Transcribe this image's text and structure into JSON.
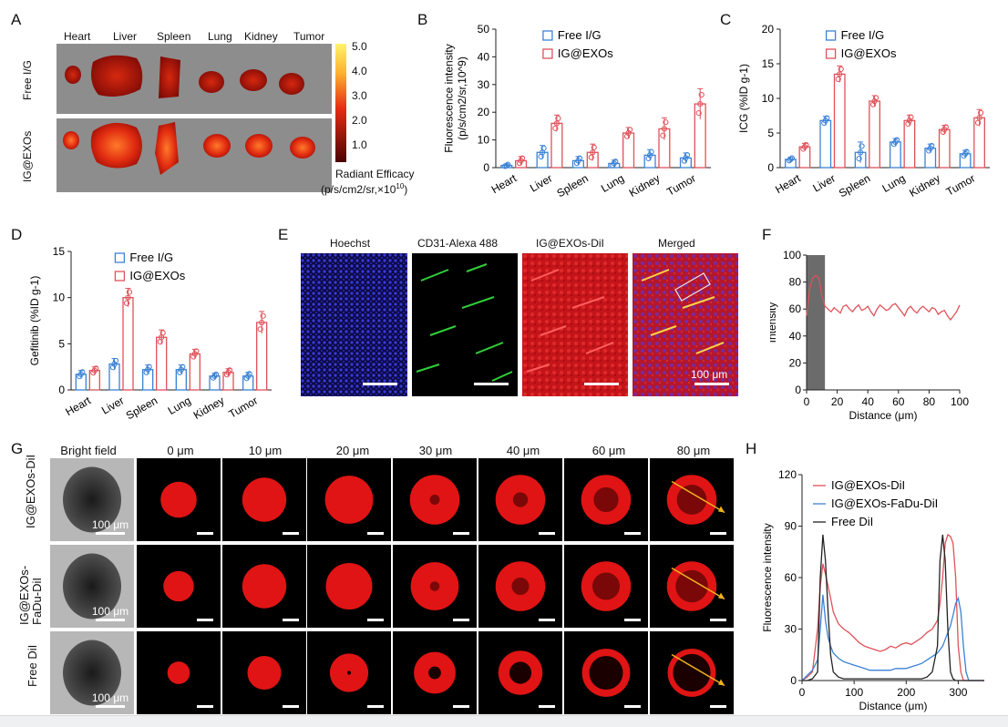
{
  "panels": {
    "A": "A",
    "B": "B",
    "C": "C",
    "D": "D",
    "E": "E",
    "F": "F",
    "G": "G",
    "H": "H"
  },
  "panelA": {
    "organs": [
      "Heart",
      "Liver",
      "Spleen",
      "Lung",
      "Kidney",
      "Tumor"
    ],
    "rows": [
      "Free I/G",
      "IG@EXOs"
    ],
    "colorbar_ticks": [
      "5.0",
      "4.0",
      "3.0",
      "2.0",
      "1.0"
    ],
    "colorbar_title": "Radiant Efficacy",
    "colorbar_unit": "(p/s/cm2/sr,×10",
    "colorbar_unit_exp": "10",
    "colorbar_unit_close": ")"
  },
  "panelE": {
    "titles": [
      "Hoechst",
      "CD31-Alexa 488",
      "IG@EXOs-DiI",
      "Merged"
    ],
    "scale_label": "100 μm"
  },
  "panelG": {
    "col_titles": [
      "Bright field",
      "0 μm",
      "10 μm",
      "20 μm",
      "30 μm",
      "40 μm",
      "60 μm",
      "80 μm"
    ],
    "row_labels": [
      "IG@EXOs-DiI",
      "IG@EXOs-\nFaDu-DiI",
      "Free DiI"
    ],
    "scale_label": "100 μm"
  },
  "chart_data": [
    {
      "id": "B",
      "type": "bar",
      "categories": [
        "Heart",
        "Liver",
        "Spleen",
        "Lung",
        "Kidney",
        "Tumor"
      ],
      "series": [
        {
          "name": "Free I/G",
          "values": [
            0.8,
            5.5,
            2.5,
            1.5,
            4.5,
            3.5
          ],
          "errors": [
            0.5,
            2.5,
            1.5,
            1.2,
            2.0,
            1.8
          ],
          "color": "#3b82d6"
        },
        {
          "name": "IG@EXOs",
          "values": [
            2.5,
            16,
            5.5,
            12.5,
            14,
            23
          ],
          "errors": [
            1.5,
            3,
            3,
            2,
            4,
            5.5
          ],
          "color": "#e0525a"
        }
      ],
      "ylabel": "Fluorescence intensity\n(p/s/cm2/sr,10^9)",
      "yticks": [
        0,
        10,
        20,
        30,
        40,
        50
      ],
      "ylim": [
        0,
        50
      ]
    },
    {
      "id": "C",
      "type": "bar",
      "categories": [
        "Heart",
        "Liver",
        "Spleen",
        "Lung",
        "Kidney",
        "Tumor"
      ],
      "series": [
        {
          "name": "Free I/G",
          "values": [
            1.2,
            6.8,
            2.2,
            3.7,
            2.8,
            2.0
          ],
          "errors": [
            0.3,
            0.6,
            1.5,
            0.5,
            0.6,
            0.5
          ],
          "color": "#3b82d6"
        },
        {
          "name": "IG@EXOs",
          "values": [
            3.0,
            13.5,
            9.6,
            6.8,
            5.5,
            7.2
          ],
          "errors": [
            0.5,
            1.2,
            0.8,
            0.8,
            0.6,
            1.2
          ],
          "color": "#e0525a"
        }
      ],
      "ylabel": "ICG (%ID g-1)",
      "yticks": [
        0,
        5,
        10,
        15,
        20
      ],
      "ylim": [
        0,
        20
      ]
    },
    {
      "id": "D",
      "type": "bar",
      "categories": [
        "Heart",
        "Liver",
        "Spleen",
        "Lung",
        "Kidney",
        "Tumor"
      ],
      "series": [
        {
          "name": "Free I/G",
          "values": [
            1.7,
            2.8,
            2.2,
            2.2,
            1.5,
            1.5
          ],
          "errors": [
            0.4,
            0.6,
            0.5,
            0.5,
            0.3,
            0.4
          ],
          "color": "#3b82d6"
        },
        {
          "name": "IG@EXOs",
          "values": [
            2.1,
            10.0,
            5.7,
            3.9,
            1.9,
            7.3
          ],
          "errors": [
            0.4,
            1.0,
            0.8,
            0.5,
            0.4,
            1.2
          ],
          "color": "#e0525a"
        }
      ],
      "ylabel": "Gefitinib (%ID g-1)",
      "yticks": [
        0,
        5,
        10,
        15
      ],
      "ylim": [
        0,
        15
      ]
    },
    {
      "id": "F",
      "type": "line",
      "x": [
        0,
        2,
        4,
        6,
        8,
        10,
        12,
        14,
        16,
        18,
        20,
        22,
        24,
        26,
        28,
        30,
        32,
        34,
        36,
        38,
        40,
        42,
        44,
        46,
        48,
        50,
        52,
        54,
        56,
        58,
        60,
        62,
        64,
        66,
        68,
        70,
        72,
        74,
        76,
        78,
        80,
        82,
        84,
        86,
        88,
        90,
        92,
        94,
        96,
        98,
        100
      ],
      "series": [
        {
          "name": "",
          "values": [
            55,
            75,
            83,
            85,
            83,
            70,
            62,
            60,
            58,
            61,
            59,
            57,
            62,
            63,
            60,
            58,
            61,
            63,
            59,
            60,
            62,
            58,
            55,
            60,
            63,
            61,
            59,
            60,
            63,
            64,
            61,
            58,
            55,
            60,
            62,
            59,
            57,
            60,
            62,
            60,
            58,
            61,
            60,
            56,
            58,
            59,
            55,
            52,
            55,
            58,
            63
          ]
        }
      ],
      "shaded_x": [
        0,
        12
      ],
      "xlabel": "Distance (μm)",
      "ylabel": "Intensity",
      "xticks": [
        0,
        20,
        40,
        60,
        80,
        100
      ],
      "yticks": [
        0,
        20,
        40,
        60,
        80,
        100
      ],
      "xlim": [
        0,
        100
      ],
      "ylim": [
        0,
        100
      ]
    },
    {
      "id": "H",
      "type": "line",
      "x": [
        0,
        10,
        20,
        30,
        35,
        40,
        45,
        50,
        55,
        60,
        70,
        80,
        90,
        100,
        110,
        120,
        130,
        140,
        150,
        160,
        170,
        180,
        190,
        200,
        210,
        220,
        230,
        240,
        250,
        260,
        265,
        270,
        275,
        280,
        285,
        290,
        295,
        300,
        305,
        310,
        315,
        320,
        330,
        340,
        350
      ],
      "series": [
        {
          "name": "IG@EXOs-DiI",
          "color": "#e0525a",
          "values": [
            0,
            2,
            5,
            30,
            55,
            68,
            62,
            55,
            48,
            40,
            33,
            30,
            28,
            25,
            22,
            20,
            19,
            18,
            17,
            18,
            20,
            19,
            21,
            22,
            21,
            23,
            25,
            28,
            30,
            35,
            45,
            60,
            80,
            85,
            84,
            80,
            60,
            20,
            5,
            0,
            0,
            0,
            0,
            0,
            0
          ]
        },
        {
          "name": "IG@EXOs-FaDu-DiI",
          "color": "#3b82d6",
          "values": [
            0,
            3,
            6,
            12,
            30,
            50,
            35,
            25,
            20,
            16,
            13,
            11,
            10,
            9,
            8,
            7,
            6,
            6,
            6,
            6,
            6,
            7,
            7,
            7,
            8,
            9,
            10,
            12,
            14,
            16,
            18,
            20,
            24,
            28,
            32,
            38,
            45,
            48,
            40,
            20,
            5,
            0,
            0,
            0,
            0
          ]
        },
        {
          "name": "Free DiI",
          "color": "#222222",
          "values": [
            0,
            0,
            1,
            5,
            60,
            85,
            70,
            40,
            15,
            5,
            2,
            1,
            1,
            1,
            1,
            1,
            1,
            1,
            1,
            1,
            1,
            1,
            1,
            1,
            1,
            1,
            1,
            2,
            5,
            20,
            70,
            85,
            70,
            30,
            5,
            1,
            0,
            0,
            0,
            0,
            0,
            0,
            0,
            0,
            0
          ]
        }
      ],
      "xlabel": "Distance (μm)",
      "ylabel": "Fluorescence intensity",
      "xticks": [
        0,
        100,
        200,
        300
      ],
      "yticks": [
        0,
        30,
        60,
        90,
        120
      ],
      "xlim": [
        0,
        350
      ],
      "ylim": [
        0,
        120
      ]
    }
  ]
}
